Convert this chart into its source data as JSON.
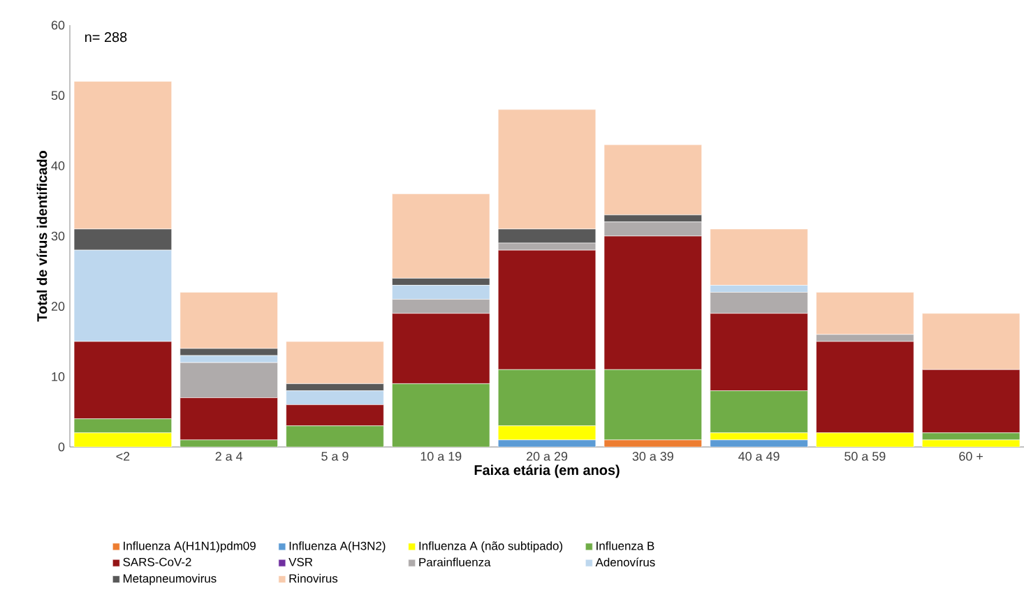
{
  "chart_data": {
    "type": "bar",
    "stacked": true,
    "xlabel": "Faixa etária (em anos)",
    "ylabel": "Total de vírus identificado",
    "annotations": [
      "n= 288"
    ],
    "categories": [
      "<2",
      "2 a 4",
      "5 a 9",
      "10 a 19",
      "20 a 29",
      "30 a 39",
      "40 a 49",
      "50 a 59",
      "60 +"
    ],
    "ylim": [
      0,
      60
    ],
    "yticks": [
      0,
      10,
      20,
      30,
      40,
      50,
      60
    ],
    "grid": false,
    "legend": "bottom",
    "series": [
      {
        "name": "Influenza A(H1N1)pdm09",
        "color": "#ed7d31",
        "values": [
          0,
          0,
          0,
          0,
          0,
          1,
          0,
          0,
          0
        ]
      },
      {
        "name": "Influenza A(H3N2)",
        "color": "#5b9bd5",
        "values": [
          0,
          0,
          0,
          0,
          1,
          0,
          1,
          0,
          0
        ]
      },
      {
        "name": "Influenza A (não subtipado)",
        "color": "#ffff00",
        "values": [
          2,
          0,
          0,
          0,
          2,
          0,
          1,
          2,
          1
        ]
      },
      {
        "name": "Influenza B",
        "color": "#70ad47",
        "values": [
          2,
          1,
          3,
          9,
          8,
          10,
          6,
          0,
          1
        ]
      },
      {
        "name": "SARS-CoV-2",
        "color": "#941416",
        "values": [
          11,
          6,
          3,
          10,
          17,
          19,
          11,
          13,
          9
        ]
      },
      {
        "name": "VSR",
        "color": "#7030a0",
        "values": [
          0,
          0,
          0,
          0,
          0,
          0,
          0,
          0,
          0
        ]
      },
      {
        "name": "Parainfluenza",
        "color": "#afabab",
        "values": [
          0,
          5,
          0,
          2,
          1,
          2,
          3,
          1,
          0
        ]
      },
      {
        "name": "Adenovírus",
        "color": "#bdd7ee",
        "values": [
          13,
          1,
          2,
          2,
          0,
          0,
          1,
          0,
          0
        ]
      },
      {
        "name": "Metapneumovirus",
        "color": "#595959",
        "values": [
          3,
          1,
          1,
          1,
          2,
          1,
          0,
          0,
          0
        ]
      },
      {
        "name": "Rinovirus",
        "color": "#f8cbad",
        "values": [
          21,
          8,
          6,
          12,
          17,
          10,
          8,
          6,
          8
        ]
      }
    ]
  }
}
